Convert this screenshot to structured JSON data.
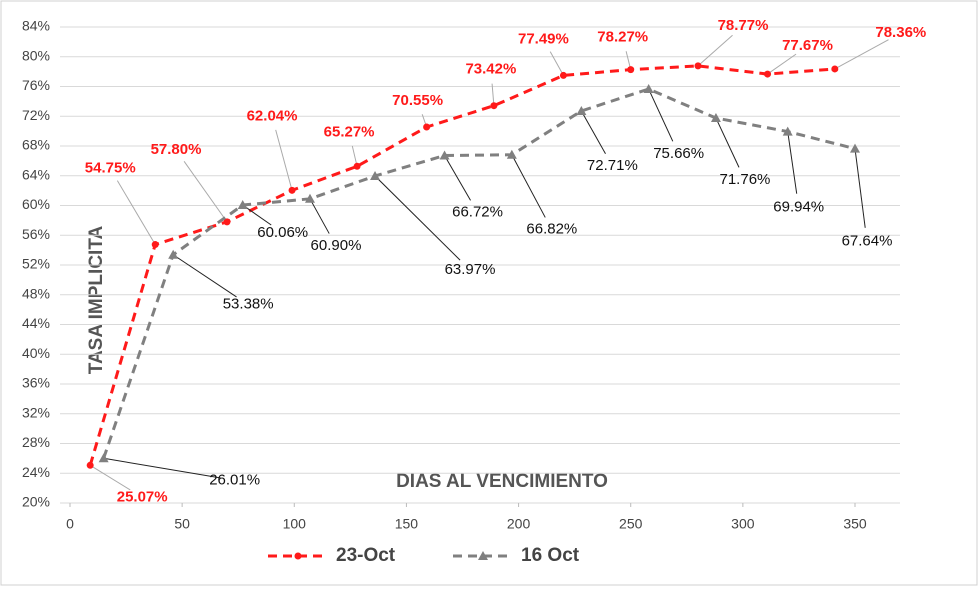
{
  "chart_data": {
    "type": "line",
    "x_label": "DIAS AL VENCIMIENTO",
    "y_label": "TASA IMPLICITA",
    "xlim": [
      0,
      350
    ],
    "xticks": [
      0,
      50,
      100,
      150,
      200,
      250,
      300,
      350
    ],
    "ylim": [
      20,
      84
    ],
    "yticks": [
      {
        "value": 20,
        "label": "20%"
      },
      {
        "value": 24,
        "label": "24%"
      },
      {
        "value": 28,
        "label": "28%"
      },
      {
        "value": 32,
        "label": "32%"
      },
      {
        "value": 36,
        "label": "36%"
      },
      {
        "value": 40,
        "label": "40%"
      },
      {
        "value": 44,
        "label": "44%"
      },
      {
        "value": 48,
        "label": "48%"
      },
      {
        "value": 52,
        "label": "52%"
      },
      {
        "value": 56,
        "label": "56%"
      },
      {
        "value": 60,
        "label": "60%"
      },
      {
        "value": 64,
        "label": "64%"
      },
      {
        "value": 68,
        "label": "68%"
      },
      {
        "value": 72,
        "label": "72%"
      },
      {
        "value": 76,
        "label": "76%"
      },
      {
        "value": 80,
        "label": "80%"
      },
      {
        "value": 84,
        "label": "84%"
      }
    ],
    "grid": true,
    "legend": "bottom",
    "series": [
      {
        "name": "23-Oct",
        "color": "#ff1a1a",
        "x": [
          9,
          38,
          70,
          99,
          128,
          159,
          189,
          220,
          250,
          280,
          311,
          341
        ],
        "values": [
          25.07,
          54.75,
          57.8,
          62.04,
          65.27,
          70.55,
          73.42,
          77.49,
          78.27,
          78.77,
          77.67,
          78.36
        ],
        "value_labels": [
          "25.07%",
          "54.75%",
          "57.80%",
          "62.04%",
          "65.27%",
          "70.55%",
          "73.42%",
          "77.49%",
          "78.27%",
          "78.77%",
          "77.67%",
          "78.36%"
        ]
      },
      {
        "name": "16 Oct",
        "color": "#808080",
        "x": [
          15,
          46,
          77,
          107,
          136,
          167,
          197,
          228,
          258,
          288,
          320,
          350
        ],
        "values": [
          26.01,
          53.38,
          60.06,
          60.9,
          63.97,
          66.72,
          66.82,
          72.71,
          75.66,
          71.76,
          69.94,
          67.64
        ],
        "value_labels": [
          "26.01%",
          "53.38%",
          "60.06%",
          "60.90%",
          "63.97%",
          "66.72%",
          "66.82%",
          "72.71%",
          "75.66%",
          "71.76%",
          "69.94%",
          "67.64%"
        ]
      }
    ]
  }
}
